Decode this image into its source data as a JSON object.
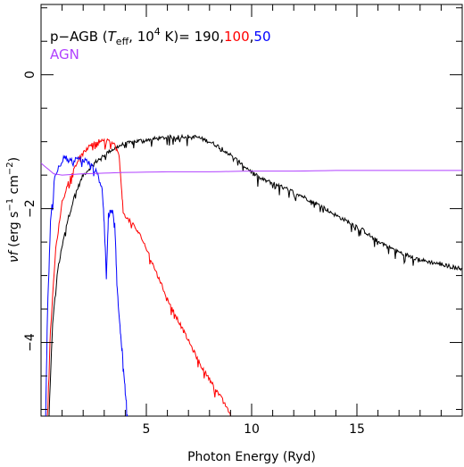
{
  "chart_data": {
    "type": "line",
    "xlabel": "Photon Energy (Ryd)",
    "ylabel_parts": {
      "nu": "ν",
      "f": "f",
      "units_open": " (erg s",
      "exp1": "−1",
      "cm": " cm",
      "exp2": "−2",
      "close": ")"
    },
    "xlim": [
      0,
      20
    ],
    "ylim": [
      -5.1,
      1.05
    ],
    "x_ticks": [
      5,
      10,
      15
    ],
    "x_tick_labels": [
      "5",
      "10",
      "15"
    ],
    "y_ticks": [
      0,
      -2,
      -4
    ],
    "y_tick_labels": [
      "0",
      "−2",
      "−4"
    ],
    "grid": false,
    "legend": {
      "placement": "top-left",
      "line1_prefix": "p−AGB (",
      "T": "T",
      "T_sub": "eff",
      "mid": ", 10",
      "exp": "4",
      "unit": " K)= ",
      "val_black": "190",
      "sep1": ",",
      "val_red": "100",
      "sep2": ",",
      "val_blue": "50",
      "line2": "AGN"
    },
    "series": [
      {
        "color": "#000000",
        "noise": 0.06,
        "x": [
          0.38,
          0.55,
          0.8,
          1.2,
          1.6,
          2.0,
          2.6,
          3.2,
          3.8,
          4.4,
          5.0,
          5.6,
          6.2,
          6.8,
          7.4,
          8.0,
          8.6,
          9.2,
          9.8,
          10.4,
          11.0,
          11.6,
          12.2,
          12.8,
          13.4,
          14.0,
          14.6,
          15.2,
          15.8,
          16.4,
          17.0,
          17.6,
          18.2,
          18.8,
          19.4,
          20.0
        ],
        "y": [
          -5.1,
          -3.7,
          -2.9,
          -2.25,
          -1.8,
          -1.5,
          -1.3,
          -1.15,
          -1.05,
          -1.0,
          -0.97,
          -0.95,
          -0.93,
          -0.92,
          -0.93,
          -1.0,
          -1.1,
          -1.25,
          -1.4,
          -1.55,
          -1.62,
          -1.7,
          -1.78,
          -1.88,
          -1.98,
          -2.1,
          -2.2,
          -2.3,
          -2.45,
          -2.55,
          -2.65,
          -2.72,
          -2.78,
          -2.82,
          -2.86,
          -2.9
        ]
      },
      {
        "color": "#ff0000",
        "noise": 0.06,
        "x": [
          0.3,
          0.45,
          0.7,
          1.0,
          1.4,
          1.8,
          2.2,
          2.6,
          3.0,
          3.3,
          3.5,
          3.7,
          3.8,
          3.9,
          4.1,
          4.4,
          4.8,
          5.2,
          5.6,
          6.0,
          6.4,
          6.8,
          7.2,
          7.6,
          8.0,
          8.4,
          8.8,
          9.0
        ],
        "y": [
          -5.1,
          -3.8,
          -2.6,
          -1.9,
          -1.5,
          -1.25,
          -1.1,
          -1.0,
          -0.98,
          -1.0,
          -1.05,
          -1.2,
          -1.6,
          -2.05,
          -2.15,
          -2.25,
          -2.45,
          -2.75,
          -3.05,
          -3.35,
          -3.6,
          -3.85,
          -4.1,
          -4.35,
          -4.55,
          -4.75,
          -4.95,
          -5.1
        ]
      },
      {
        "color": "#0000ff",
        "noise": 0.09,
        "x": [
          0.22,
          0.3,
          0.45,
          0.65,
          0.9,
          1.1,
          1.3,
          1.6,
          1.9,
          2.2,
          2.5,
          2.7,
          2.9,
          3.0,
          3.1,
          3.2,
          3.35,
          3.5,
          3.6,
          3.7,
          3.8,
          3.9,
          4.0,
          4.1
        ],
        "y": [
          -5.1,
          -3.6,
          -2.2,
          -1.5,
          -1.35,
          -1.2,
          -1.3,
          -1.28,
          -1.25,
          -1.3,
          -1.4,
          -1.5,
          -1.7,
          -2.2,
          -3.05,
          -2.1,
          -2.0,
          -2.2,
          -3.1,
          -3.6,
          -3.95,
          -4.3,
          -4.7,
          -5.1
        ]
      },
      {
        "color": "#b040ff",
        "noise": 0,
        "x": [
          0.0,
          0.3,
          0.6,
          1.0,
          2.0,
          3.0,
          4.0,
          6.0,
          8.0,
          10.0,
          12.0,
          14.0,
          16.0,
          18.0,
          20.0
        ],
        "y": [
          -1.32,
          -1.4,
          -1.48,
          -1.5,
          -1.48,
          -1.47,
          -1.46,
          -1.45,
          -1.45,
          -1.44,
          -1.44,
          -1.43,
          -1.43,
          -1.43,
          -1.43
        ]
      }
    ],
    "colors": {
      "black": "#000000",
      "red": "#ff0000",
      "blue": "#0000ff",
      "agn": "#b040ff"
    }
  }
}
